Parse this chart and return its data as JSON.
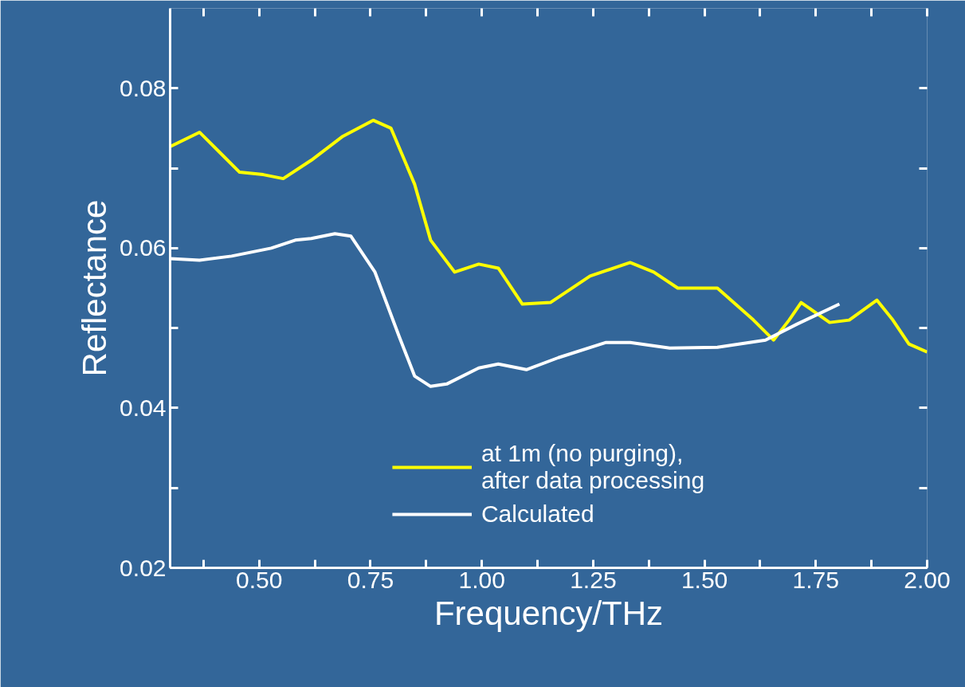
{
  "chart_data": {
    "type": "line",
    "xlabel": "Frequency/THz",
    "ylabel": "Reflectance",
    "xlim": [
      0.3,
      2.0
    ],
    "ylim": [
      0.02,
      0.09
    ],
    "xticks": [
      {
        "value": 0.375,
        "label": null
      },
      {
        "value": 0.5,
        "label": "0.50"
      },
      {
        "value": 0.625,
        "label": null
      },
      {
        "value": 0.75,
        "label": "0.75"
      },
      {
        "value": 0.875,
        "label": null
      },
      {
        "value": 1.0,
        "label": "1.00"
      },
      {
        "value": 1.125,
        "label": null
      },
      {
        "value": 1.25,
        "label": "1.25"
      },
      {
        "value": 1.375,
        "label": null
      },
      {
        "value": 1.5,
        "label": "1.50"
      },
      {
        "value": 1.625,
        "label": null
      },
      {
        "value": 1.75,
        "label": "1.75"
      },
      {
        "value": 1.875,
        "label": null
      },
      {
        "value": 2.0,
        "label": "2.00"
      }
    ],
    "yticks": [
      {
        "value": 0.02,
        "label": "0.02"
      },
      {
        "value": 0.03,
        "label": null
      },
      {
        "value": 0.04,
        "label": "0.04"
      },
      {
        "value": 0.05,
        "label": null
      },
      {
        "value": 0.06,
        "label": "0.06"
      },
      {
        "value": 0.07,
        "label": null
      },
      {
        "value": 0.08,
        "label": "0.08"
      }
    ],
    "grid": false,
    "legend": "bottom",
    "line_style": "solid",
    "series": [
      {
        "name": "at 1m (no purging),\nafter data processing",
        "color": "#ffff00",
        "x": [
          0.3,
          0.366,
          0.411,
          0.456,
          0.509,
          0.554,
          0.617,
          0.688,
          0.756,
          0.796,
          0.849,
          0.885,
          0.939,
          0.993,
          1.037,
          1.091,
          1.154,
          1.243,
          1.333,
          1.386,
          1.44,
          1.529,
          1.61,
          1.655,
          1.69,
          1.717,
          1.781,
          1.825,
          1.887,
          1.923,
          1.959,
          2.0
        ],
        "values": [
          0.0727,
          0.0745,
          0.072,
          0.0695,
          0.0692,
          0.0687,
          0.071,
          0.074,
          0.076,
          0.075,
          0.068,
          0.061,
          0.057,
          0.058,
          0.0575,
          0.053,
          0.0532,
          0.0565,
          0.0582,
          0.057,
          0.055,
          0.055,
          0.051,
          0.0485,
          0.051,
          0.0532,
          0.0507,
          0.051,
          0.0535,
          0.051,
          0.048,
          0.047
        ]
      },
      {
        "name": "Calculated",
        "color": "#ffffff",
        "x": [
          0.3,
          0.366,
          0.438,
          0.527,
          0.581,
          0.617,
          0.67,
          0.706,
          0.76,
          0.814,
          0.849,
          0.885,
          0.921,
          0.993,
          1.037,
          1.1,
          1.172,
          1.279,
          1.333,
          1.422,
          1.529,
          1.637,
          1.708,
          1.803
        ],
        "values": [
          0.0587,
          0.0585,
          0.059,
          0.06,
          0.061,
          0.0612,
          0.0618,
          0.0615,
          0.057,
          0.049,
          0.044,
          0.0427,
          0.043,
          0.045,
          0.0455,
          0.0448,
          0.0463,
          0.0482,
          0.0482,
          0.0475,
          0.0476,
          0.0485,
          0.0505,
          0.053
        ]
      }
    ]
  }
}
